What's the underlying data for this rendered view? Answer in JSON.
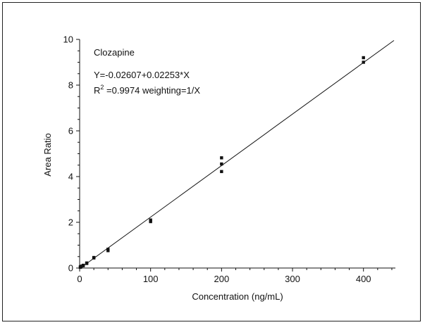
{
  "chart_data": {
    "type": "scatter",
    "title": "",
    "xlabel": "Concentration (ng/mL)",
    "ylabel": "Area Ratio",
    "xlim": [
      0,
      445
    ],
    "ylim": [
      0,
      10
    ],
    "xticks": [
      0,
      100,
      200,
      300,
      400
    ],
    "yticks": [
      0,
      2,
      4,
      6,
      8,
      10
    ],
    "grid": false,
    "annotations": {
      "compound": "Clozapine",
      "equation": "Y=-0.02607+0.02253*X",
      "r2_prefix": "R",
      "r2_sup": "2",
      "r2_rest": " =0.9974 weighting=1/X"
    },
    "fit_line": {
      "intercept": -0.02607,
      "slope": 0.02253
    },
    "series": [
      {
        "points": [
          [
            1,
            0.03
          ],
          [
            1,
            0.05
          ],
          [
            2,
            0.06
          ],
          [
            2,
            0.08
          ],
          [
            5,
            0.1
          ],
          [
            5,
            0.12
          ],
          [
            10,
            0.2
          ],
          [
            10,
            0.22
          ],
          [
            20,
            0.44
          ],
          [
            20,
            0.46
          ],
          [
            40,
            0.76
          ],
          [
            40,
            0.82
          ],
          [
            100,
            2.03
          ],
          [
            100,
            2.1
          ],
          [
            200,
            4.22
          ],
          [
            200,
            4.55
          ],
          [
            200,
            4.82
          ],
          [
            400,
            9.0
          ],
          [
            400,
            9.2
          ]
        ]
      }
    ],
    "colors": {
      "marker": "#111111",
      "line": "#111111",
      "axis": "#111111"
    }
  }
}
